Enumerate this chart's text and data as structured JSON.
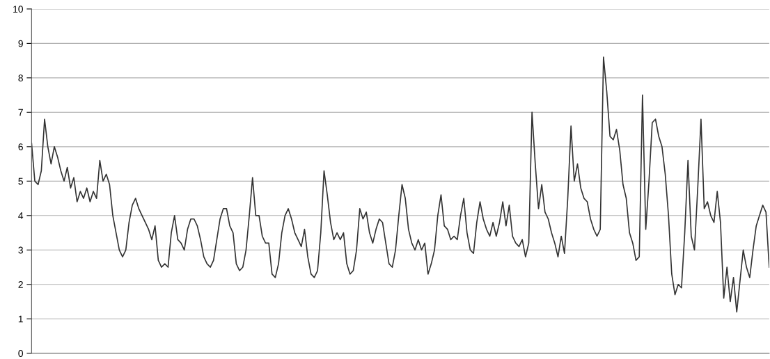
{
  "chart_data": {
    "type": "line",
    "color": "#333333",
    "ylim": [
      0,
      10
    ],
    "yticks": [
      0,
      1,
      2,
      3,
      4,
      5,
      6,
      7,
      8,
      9,
      10
    ],
    "grid": "y",
    "legend": false,
    "marker": "none",
    "line_style": "solid",
    "tick_labels": "y",
    "categories": [
      null,
      null,
      null,
      null,
      null,
      null,
      null,
      null,
      null,
      null,
      null,
      null,
      null,
      null,
      null,
      null,
      null,
      null,
      null,
      null,
      null,
      null,
      null,
      null,
      null,
      null,
      null,
      null,
      null,
      null,
      null,
      null,
      null,
      null,
      null,
      null,
      null,
      null,
      null,
      null,
      null,
      null,
      null,
      null,
      null,
      null,
      null,
      null,
      null,
      null,
      null,
      null,
      null,
      null,
      null,
      null,
      null,
      null,
      null,
      null,
      null,
      null,
      null,
      null,
      null,
      null,
      null,
      null,
      null,
      null,
      null,
      null,
      null,
      null,
      null,
      null,
      null,
      null,
      null,
      null,
      null,
      null,
      null,
      null,
      null,
      null,
      null,
      null,
      null,
      null,
      null,
      null,
      null,
      null,
      null,
      null,
      null,
      null,
      null,
      null,
      null,
      null,
      null,
      null,
      null,
      null,
      null,
      null,
      null,
      null,
      null,
      null,
      null,
      null,
      null,
      null,
      null,
      null,
      null,
      null,
      null,
      null,
      null,
      null,
      null,
      null,
      null,
      null,
      null,
      null,
      null,
      null,
      null,
      null,
      null,
      null,
      null,
      null,
      null,
      null,
      null,
      null,
      null,
      null,
      null,
      null,
      null,
      null,
      null,
      null,
      null,
      null,
      null,
      null,
      null,
      null,
      null,
      null,
      null,
      null,
      null,
      null,
      null,
      null,
      null,
      null,
      null,
      null,
      null,
      null,
      null,
      null,
      null,
      null,
      null,
      null,
      null,
      null,
      null,
      null,
      null,
      null,
      null,
      null,
      null,
      null,
      null,
      null,
      null,
      null,
      null,
      null,
      null,
      null,
      null,
      null,
      null,
      null,
      null,
      null,
      null,
      null,
      null,
      null,
      null,
      null,
      null,
      null,
      null,
      null,
      null,
      null,
      null,
      null,
      null,
      null,
      null,
      null,
      null,
      null,
      null,
      null,
      null,
      null,
      null,
      null,
      null,
      null
    ],
    "values": [
      6.1,
      5.0,
      4.9,
      5.3,
      6.8,
      6.0,
      5.5,
      6.0,
      5.7,
      5.3,
      5.0,
      5.4,
      4.8,
      5.1,
      4.4,
      4.7,
      4.5,
      4.8,
      4.4,
      4.7,
      4.5,
      5.6,
      5.0,
      5.2,
      4.9,
      4.0,
      3.5,
      3.0,
      2.8,
      3.0,
      3.8,
      4.3,
      4.5,
      4.2,
      4.0,
      3.8,
      3.6,
      3.3,
      3.7,
      2.7,
      2.5,
      2.6,
      2.5,
      3.5,
      4.0,
      3.3,
      3.2,
      3.0,
      3.6,
      3.9,
      3.9,
      3.7,
      3.3,
      2.8,
      2.6,
      2.5,
      2.7,
      3.3,
      3.9,
      4.2,
      4.2,
      3.7,
      3.5,
      2.6,
      2.4,
      2.5,
      3.0,
      4.0,
      5.1,
      4.0,
      4.0,
      3.4,
      3.2,
      3.2,
      2.3,
      2.2,
      2.6,
      3.5,
      4.0,
      4.2,
      3.9,
      3.5,
      3.3,
      3.1,
      3.6,
      2.8,
      2.3,
      2.2,
      2.4,
      3.5,
      5.3,
      4.6,
      3.8,
      3.3,
      3.5,
      3.3,
      3.5,
      2.6,
      2.3,
      2.4,
      3.0,
      4.2,
      3.9,
      4.1,
      3.5,
      3.2,
      3.6,
      3.9,
      3.8,
      3.2,
      2.6,
      2.5,
      3.0,
      4.0,
      4.9,
      4.5,
      3.6,
      3.2,
      3.0,
      3.3,
      3.0,
      3.2,
      2.3,
      2.6,
      3.0,
      4.0,
      4.6,
      3.7,
      3.6,
      3.3,
      3.4,
      3.3,
      4.0,
      4.5,
      3.5,
      3.0,
      2.9,
      3.8,
      4.4,
      3.9,
      3.6,
      3.4,
      3.8,
      3.4,
      3.8,
      4.4,
      3.7,
      4.3,
      3.4,
      3.2,
      3.1,
      3.3,
      2.8,
      3.2,
      7.0,
      5.5,
      4.2,
      4.9,
      4.1,
      3.9,
      3.5,
      3.2,
      2.8,
      3.4,
      2.9,
      4.5,
      6.6,
      5.0,
      5.5,
      4.8,
      4.5,
      4.4,
      3.9,
      3.6,
      3.4,
      3.6,
      8.6,
      7.6,
      6.3,
      6.2,
      6.5,
      5.9,
      4.9,
      4.5,
      3.5,
      3.2,
      2.7,
      2.8,
      7.5,
      3.6,
      5.0,
      6.7,
      6.8,
      6.3,
      6.0,
      5.2,
      4.0,
      2.3,
      1.7,
      2.0,
      1.9,
      3.5,
      5.6,
      3.4,
      3.0,
      4.8,
      6.8,
      4.2,
      4.4,
      4.0,
      3.8,
      4.7,
      3.8,
      1.6,
      2.5,
      1.5,
      2.2,
      1.2,
      2.1,
      3.0,
      2.5,
      2.2,
      3.0,
      3.7,
      4.0,
      4.3,
      4.1,
      2.5
    ]
  }
}
